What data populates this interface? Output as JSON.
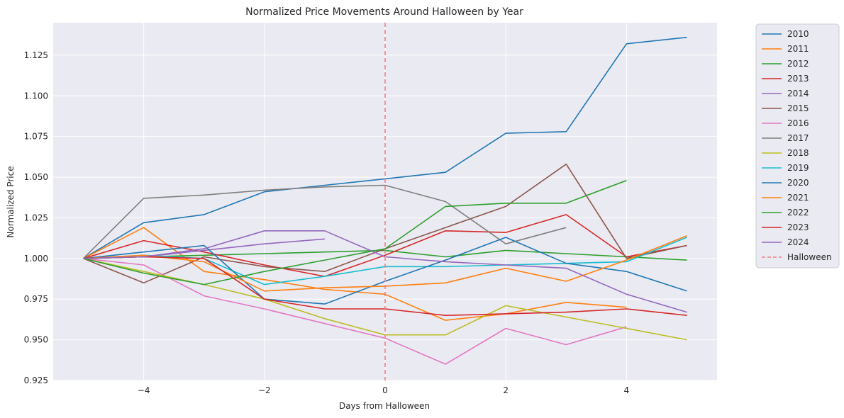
{
  "chart_data": {
    "type": "line",
    "title": "Normalized Price Movements Around Halloween by Year",
    "xlabel": "Days from Halloween",
    "ylabel": "Normalized Price",
    "xlim": [
      -5.5,
      5.5
    ],
    "ylim": [
      0.925,
      1.145
    ],
    "xticks": [
      -4,
      -2,
      0,
      2,
      4
    ],
    "xtick_labels": [
      "−4",
      "−2",
      "0",
      "2",
      "4"
    ],
    "yticks": [
      0.925,
      0.95,
      0.975,
      1.0,
      1.025,
      1.05,
      1.075,
      1.1,
      1.125
    ],
    "ytick_labels": [
      "0.925",
      "0.950",
      "0.975",
      "1.000",
      "1.025",
      "1.050",
      "1.075",
      "1.100",
      "1.125"
    ],
    "grid": true,
    "legend_position": "outside-right",
    "background": "#eaeaf2",
    "series": [
      {
        "name": "2010",
        "color": "#1f77b4",
        "x": [
          -5,
          -4,
          -3,
          -2,
          -1,
          0,
          1,
          2,
          3,
          4,
          5
        ],
        "y": [
          1.0,
          1.022,
          1.027,
          1.041,
          1.045,
          1.049,
          1.053,
          1.077,
          1.078,
          1.132,
          1.136
        ]
      },
      {
        "name": "2011",
        "color": "#ff7f0e",
        "x": [
          -5,
          -4,
          -3,
          -2,
          -1,
          0,
          1,
          2,
          3,
          4
        ],
        "y": [
          1.0,
          1.019,
          0.992,
          0.987,
          0.981,
          0.978,
          0.962,
          0.966,
          0.973,
          0.97
        ]
      },
      {
        "name": "2012",
        "color": "#2ca02c",
        "x": [
          -5,
          -4,
          -3,
          -2,
          -1,
          0,
          1,
          2,
          3,
          4,
          5
        ],
        "y": [
          1.0,
          1.001,
          1.002,
          1.003,
          1.004,
          1.005,
          1.001,
          1.005,
          1.003,
          1.001,
          0.999
        ]
      },
      {
        "name": "2013",
        "color": "#d62728",
        "x": [
          -5,
          -4,
          -3,
          -2,
          -1,
          0,
          1,
          2,
          3,
          4,
          5
        ],
        "y": [
          1.0,
          1.011,
          1.004,
          0.996,
          0.989,
          1.002,
          1.017,
          1.016,
          1.027,
          1.001,
          1.008
        ]
      },
      {
        "name": "2014",
        "color": "#9467bd",
        "x": [
          -5,
          -4,
          -3,
          -2,
          -1
        ],
        "y": [
          1.0,
          1.001,
          1.005,
          1.009,
          1.012
        ]
      },
      {
        "name": "2015",
        "color": "#8c564b",
        "x": [
          -5,
          -4,
          -3,
          -2,
          -1,
          0,
          1,
          2,
          3,
          4,
          5
        ],
        "y": [
          1.0,
          0.985,
          1.001,
          0.995,
          0.992,
          1.006,
          1.019,
          1.032,
          1.058,
          1.0,
          1.008
        ]
      },
      {
        "name": "2016",
        "color": "#e377c2",
        "x": [
          -5,
          -4,
          -3,
          -2,
          -1,
          0,
          1,
          2,
          3,
          4
        ],
        "y": [
          1.0,
          0.996,
          0.977,
          0.969,
          0.96,
          0.951,
          0.935,
          0.957,
          0.947,
          0.958
        ]
      },
      {
        "name": "2017",
        "color": "#7f7f7f",
        "x": [
          -5,
          -4,
          -3,
          -2,
          -1,
          0,
          1,
          2,
          3
        ],
        "y": [
          1.0,
          1.037,
          1.039,
          1.042,
          1.044,
          1.045,
          1.035,
          1.009,
          1.019
        ]
      },
      {
        "name": "2018",
        "color": "#bcbd22",
        "x": [
          -5,
          -4,
          -3,
          -2,
          -1,
          0,
          1,
          2,
          3,
          4,
          5
        ],
        "y": [
          1.0,
          0.992,
          0.984,
          0.975,
          0.963,
          0.953,
          0.953,
          0.971,
          0.964,
          0.957,
          0.95
        ]
      },
      {
        "name": "2019",
        "color": "#17becf",
        "x": [
          -5,
          -4,
          -3,
          -2,
          -1,
          0,
          1,
          2,
          3,
          4,
          5
        ],
        "y": [
          1.0,
          1.002,
          1.0,
          0.984,
          0.989,
          0.995,
          0.995,
          0.996,
          0.997,
          0.998,
          1.013
        ]
      },
      {
        "name": "2020",
        "color": "#1f77b4",
        "x": [
          -5,
          -4,
          -3,
          -2,
          -1,
          0,
          1,
          2,
          3,
          4,
          5
        ],
        "y": [
          1.0,
          1.004,
          1.008,
          0.975,
          0.972,
          0.986,
          0.999,
          1.013,
          0.997,
          0.992,
          0.98
        ]
      },
      {
        "name": "2021",
        "color": "#ff7f0e",
        "x": [
          -5,
          -4,
          -3,
          -2,
          -1,
          0,
          1,
          2,
          3,
          4,
          5
        ],
        "y": [
          1.0,
          1.002,
          0.998,
          0.98,
          0.982,
          0.983,
          0.985,
          0.994,
          0.986,
          0.999,
          1.014
        ]
      },
      {
        "name": "2022",
        "color": "#2ca02c",
        "x": [
          -5,
          -4,
          -3,
          -2,
          -1,
          0,
          1,
          2,
          3,
          4
        ],
        "y": [
          1.0,
          0.991,
          0.984,
          0.992,
          0.999,
          1.006,
          1.032,
          1.034,
          1.034,
          1.048
        ]
      },
      {
        "name": "2023",
        "color": "#d62728",
        "x": [
          -5,
          -4,
          -3,
          -2,
          -1,
          0,
          1,
          2,
          3,
          4,
          5
        ],
        "y": [
          1.0,
          1.001,
          1.0,
          0.975,
          0.969,
          0.969,
          0.965,
          0.966,
          0.967,
          0.969,
          0.965
        ]
      },
      {
        "name": "2024",
        "color": "#9467bd",
        "x": [
          -5,
          -4,
          -3,
          -2,
          -1,
          0,
          1,
          2,
          3,
          4,
          5
        ],
        "y": [
          1.0,
          1.001,
          1.006,
          1.017,
          1.017,
          1.001,
          0.998,
          0.996,
          0.994,
          0.978,
          0.967
        ]
      }
    ],
    "annotations": [
      {
        "name": "Halloween",
        "type": "vline",
        "x": 0,
        "color": "#f08080",
        "style": "dashed"
      }
    ]
  }
}
